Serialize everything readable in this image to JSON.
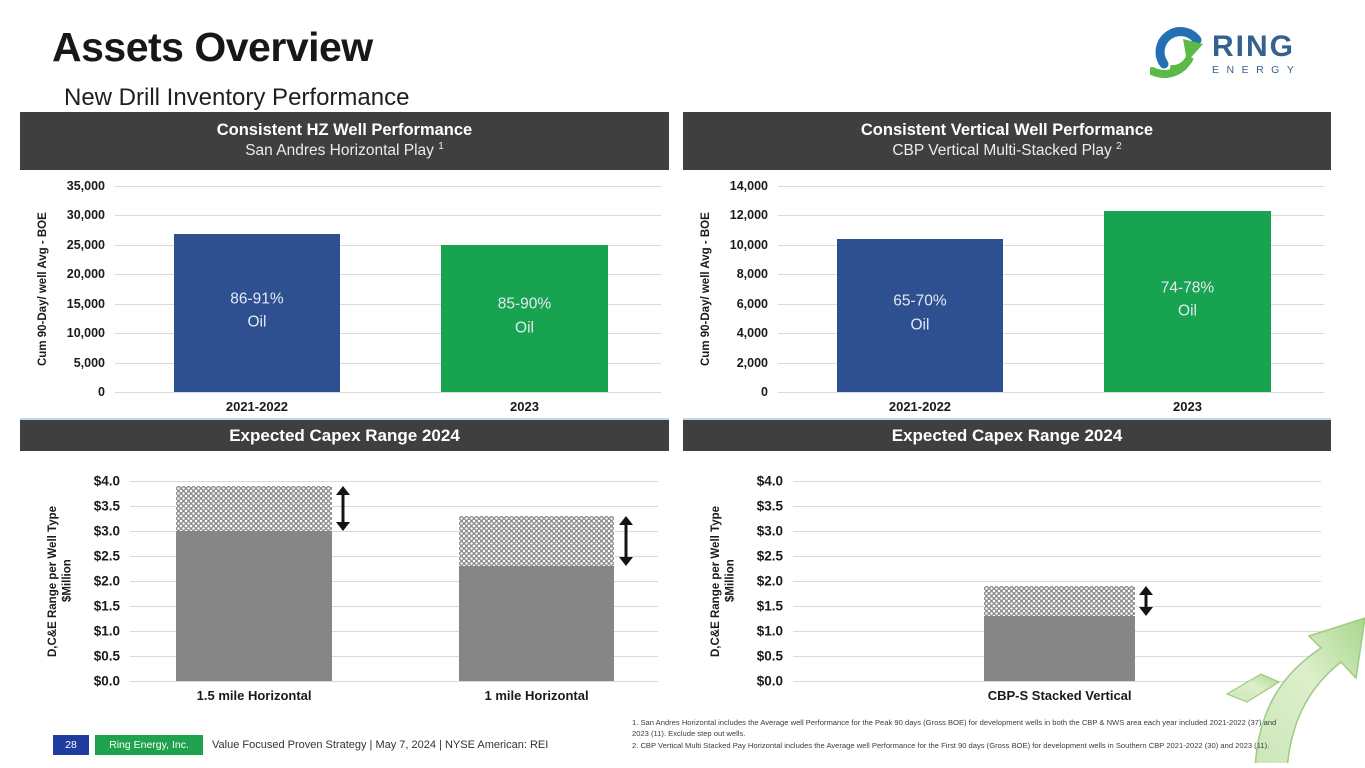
{
  "slide": {
    "title": "Assets Overview",
    "subtitle": "New Drill Inventory Performance"
  },
  "logo": {
    "brand": "RING",
    "sub": "ENERGY"
  },
  "panels": [
    {
      "title": "Consistent HZ Well Performance",
      "subtitle": "San Andres Horizontal Play",
      "sup": "1"
    },
    {
      "title": "Consistent Vertical Well Performance",
      "subtitle": "CBP Vertical Multi-Stacked Play",
      "sup": "2"
    },
    {
      "title": "Expected Capex Range 2024"
    },
    {
      "title": "Expected Capex Range 2024"
    }
  ],
  "chart_data": [
    {
      "type": "bar",
      "title": "Consistent HZ Well Performance — San Andres Horizontal Play",
      "ylabel": "Cum 90-Day/ well Avg - BOE",
      "ylim": [
        0,
        35000
      ],
      "ytick_step": 5000,
      "tick_format": "thousands",
      "grid": true,
      "categories": [
        "2021-2022",
        "2023"
      ],
      "values": [
        26800,
        25000
      ],
      "bar_labels": [
        "86-91%\nOil",
        "85-90%\nOil"
      ],
      "bar_colors": [
        "#2E5090",
        "#18A350"
      ]
    },
    {
      "type": "bar",
      "title": "Consistent Vertical Well Performance — CBP Vertical Multi-Stacked Play",
      "ylabel": "Cum 90-Day/ well Avg - BOE",
      "ylim": [
        0,
        14000
      ],
      "ytick_step": 2000,
      "tick_format": "thousands",
      "grid": true,
      "categories": [
        "2021-2022",
        "2023"
      ],
      "values": [
        10400,
        12300
      ],
      "bar_labels": [
        "65-70%\nOil",
        "74-78%\nOil"
      ],
      "bar_colors": [
        "#2E5090",
        "#18A350"
      ]
    },
    {
      "type": "bar",
      "subtype": "range",
      "title": "Expected Capex Range 2024 — Horizontal wells",
      "ylabel": "D,C&E Range per Well  Type\n$Million",
      "ylim": [
        0,
        4
      ],
      "ytick_step": 0.5,
      "tick_format": "usd1",
      "grid": true,
      "categories": [
        "1.5 mile Horizontal",
        "1 mile Horizontal"
      ],
      "series": [
        {
          "name": "low",
          "values": [
            3.0,
            2.3
          ]
        },
        {
          "name": "high",
          "values": [
            3.9,
            3.3
          ]
        }
      ]
    },
    {
      "type": "bar",
      "subtype": "range",
      "title": "Expected Capex Range 2024 — CBP-S Stacked Vertical",
      "ylabel": "D,C&E Range per Well  Type\n$Million",
      "ylim": [
        0,
        4
      ],
      "ytick_step": 0.5,
      "tick_format": "usd1",
      "grid": true,
      "categories": [
        "CBP-S Stacked Vertical"
      ],
      "series": [
        {
          "name": "low",
          "values": [
            1.3
          ]
        },
        {
          "name": "high",
          "values": [
            1.9
          ]
        }
      ]
    }
  ],
  "footer": {
    "page": "28",
    "company": "Ring Energy, Inc.",
    "tagline": "Value Focused Proven Strategy  | May 7, 2024 |  NYSE American: REI"
  },
  "footnotes": [
    "1. San Andres Horizontal includes the Average well Performance for the Peak 90 days (Gross BOE) for development wells in both the CBP & NWS area each year included 2021-2022 (37) and 2023 (11). Exclude step out wells.",
    "2. CBP Vertical Multi Stacked Pay Horizontal includes the Average well Performance for the First 90 days (Gross BOE) for development wells in Southern CBP 2021-2022 (30) and 2023 (11)."
  ],
  "colors": {
    "bar_blue": "#2E5090",
    "bar_green": "#18A350",
    "bar_gray": "#868686",
    "panel_header_bg": "#3F3F3F",
    "footer_blue": "#1F3C9E",
    "footer_green": "#1EA24D",
    "logo_blue": "#35618F"
  }
}
